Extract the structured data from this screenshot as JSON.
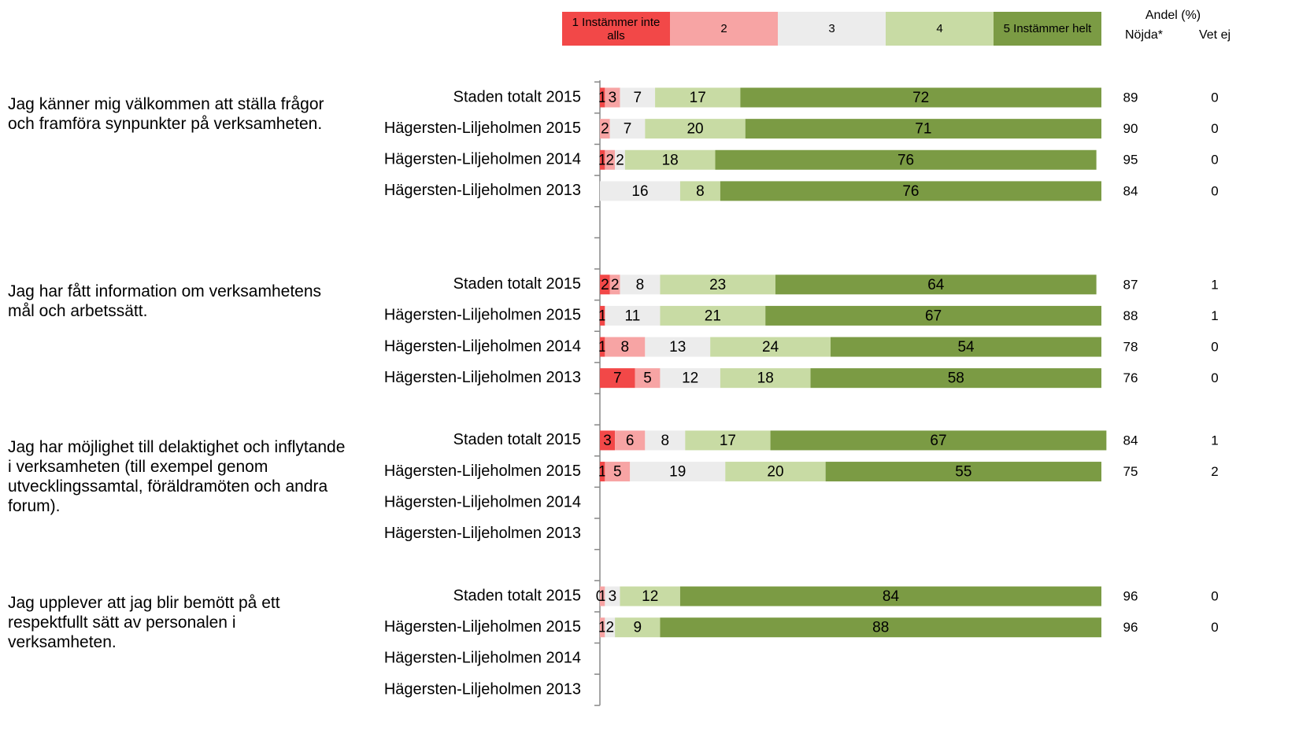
{
  "chart_data": {
    "type": "stacked-bar-horizontal",
    "questions": [
      "Jag känner mig välkommen att ställa frågor och framföra synpunkter på verksamheten.",
      "Jag har fått information om verksamhetens mål och arbetssätt.",
      "Jag har möjlighet till delaktighet och inflytande i verksamheten (till exempel genom utvecklingssamtal, föräldramöten och andra forum).",
      "Jag upplever att jag blir bemött på ett respektfullt sätt av personalen i verksamheten."
    ],
    "categories": [
      "Staden totalt 2015",
      "Hägersten-Liljeholmen 2015",
      "Hägersten-Liljeholmen 2014",
      "Hägersten-Liljeholmen 2013",
      null,
      null,
      "Staden totalt 2015",
      "Hägersten-Liljeholmen 2015",
      "Hägersten-Liljeholmen 2014",
      "Hägersten-Liljeholmen 2013",
      null,
      "Staden totalt 2015",
      "Hägersten-Liljeholmen 2015",
      "Hägersten-Liljeholmen 2014",
      "Hägersten-Liljeholmen 2013",
      null,
      "Staden totalt 2015",
      "Hägersten-Liljeholmen 2015",
      "Hägersten-Liljeholmen 2014",
      "Hägersten-Liljeholmen 2013"
    ],
    "series": [
      {
        "name": "1 Instämmer inte alls",
        "color": "#f24848",
        "values": [
          1,
          null,
          1,
          null,
          null,
          null,
          2,
          1,
          1,
          7,
          null,
          3,
          1,
          null,
          null,
          null,
          0,
          null,
          null,
          null
        ]
      },
      {
        "name": "2",
        "color": "#f7a4a4",
        "values": [
          3,
          2,
          2,
          null,
          null,
          null,
          2,
          null,
          8,
          5,
          null,
          6,
          5,
          null,
          null,
          null,
          1,
          1,
          null,
          null
        ]
      },
      {
        "name": "3",
        "color": "#ececec",
        "values": [
          7,
          7,
          2,
          16,
          null,
          null,
          8,
          11,
          13,
          12,
          null,
          8,
          19,
          null,
          null,
          null,
          3,
          2,
          null,
          null
        ]
      },
      {
        "name": "4",
        "color": "#c8dba4",
        "values": [
          17,
          20,
          18,
          8,
          null,
          null,
          23,
          21,
          24,
          18,
          null,
          17,
          20,
          null,
          null,
          null,
          12,
          9,
          null,
          null
        ]
      },
      {
        "name": "5 Instämmer helt",
        "color": "#7b9b44",
        "values": [
          72,
          71,
          76,
          76,
          null,
          null,
          64,
          67,
          54,
          58,
          null,
          67,
          55,
          null,
          null,
          null,
          84,
          88,
          null,
          null
        ]
      }
    ],
    "xlim": [
      0,
      100
    ],
    "columns_title": "Andel (%)",
    "columns": [
      {
        "name": "Nöjda*",
        "values": [
          89,
          90,
          95,
          84,
          null,
          null,
          87,
          88,
          78,
          76,
          null,
          84,
          75,
          null,
          null,
          null,
          96,
          96,
          null,
          null
        ]
      },
      {
        "name": "Vet ej",
        "values": [
          0,
          0,
          0,
          0,
          null,
          null,
          1,
          1,
          0,
          0,
          null,
          1,
          2,
          null,
          null,
          null,
          0,
          0,
          null,
          null
        ]
      }
    ]
  }
}
